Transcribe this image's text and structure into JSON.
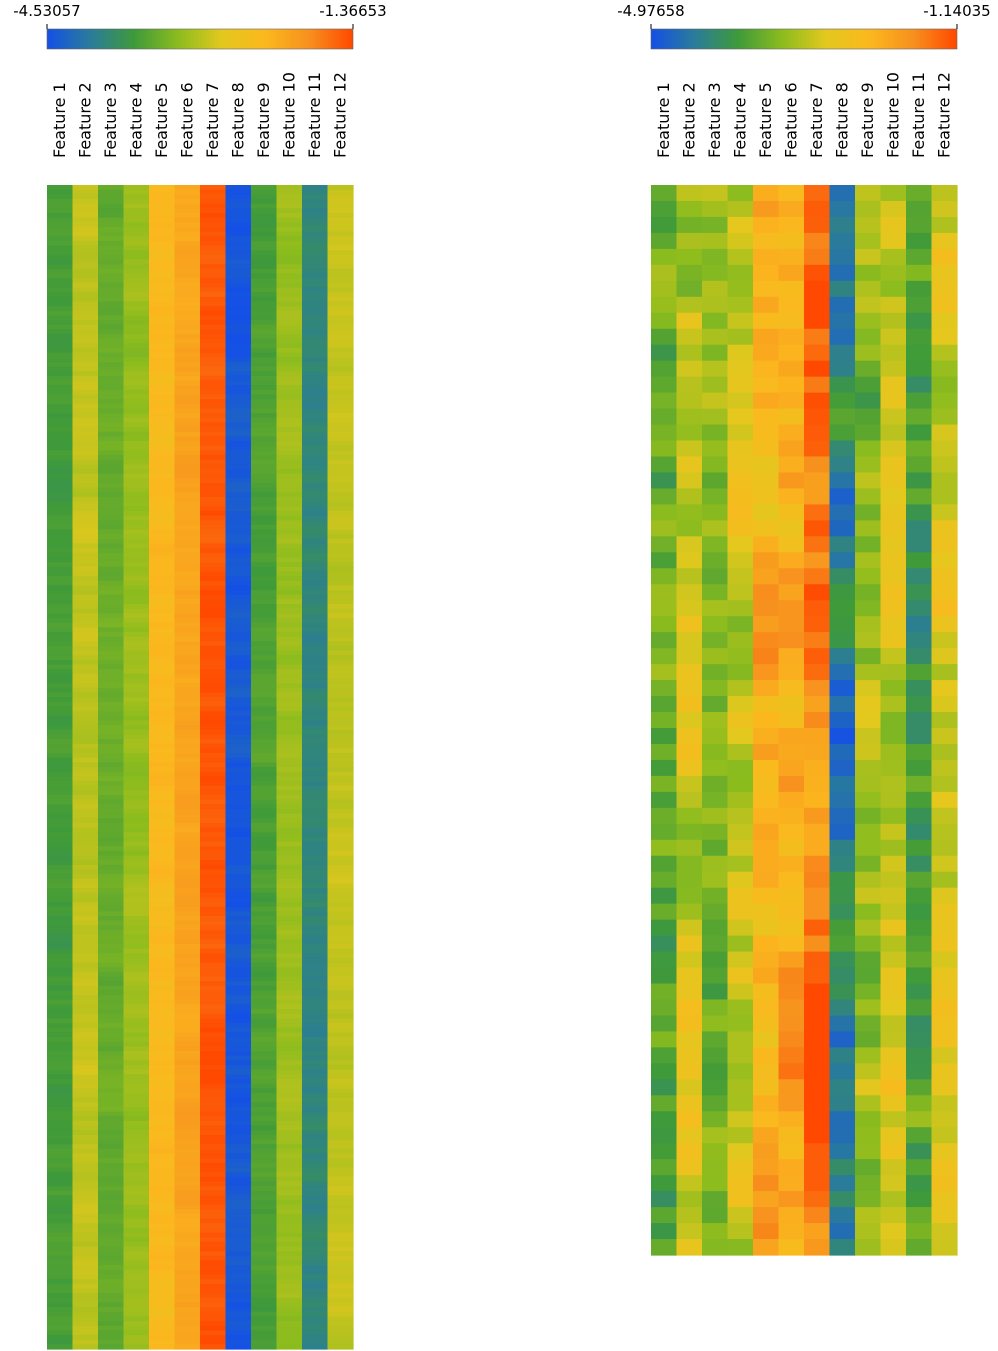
{
  "chart_data": [
    {
      "type": "heatmap",
      "title": "",
      "colorbar": {
        "min": -4.53057,
        "max": -1.36653,
        "min_label": "-4.53057",
        "max_label": "-1.36653"
      },
      "colormap": [
        "#1450e6",
        "#2a7c9a",
        "#3f9a3a",
        "#8cbc1e",
        "#e3c81e",
        "#fbb81e",
        "#f7901e",
        "#ff4800"
      ],
      "features": [
        "Feature 1",
        "Feature 2",
        "Feature 3",
        "Feature 4",
        "Feature 5",
        "Feature 6",
        "Feature 7",
        "Feature 8",
        "Feature 9",
        "Feature 10",
        "Feature 11",
        "Feature 12"
      ],
      "row_count": 250,
      "row_variation": 0.06,
      "column_means": [
        -3.6,
        -2.9,
        -3.4,
        -3.1,
        -2.3,
        -2.05,
        -1.45,
        -4.45,
        -3.55,
        -3.1,
        -3.95,
        -2.9
      ]
    },
    {
      "type": "heatmap",
      "title": "",
      "colorbar": {
        "min": -4.97658,
        "max": -1.14035,
        "min_label": "-4.97658",
        "max_label": "-1.14035"
      },
      "colormap": [
        "#1450e6",
        "#2a7c9a",
        "#3f9a3a",
        "#8cbc1e",
        "#e3c81e",
        "#fbb81e",
        "#f7901e",
        "#ff4800"
      ],
      "features": [
        "Feature 1",
        "Feature 2",
        "Feature 3",
        "Feature 4",
        "Feature 5",
        "Feature 6",
        "Feature 7",
        "Feature 8",
        "Feature 9",
        "Feature 10",
        "Feature 11",
        "Feature 12"
      ],
      "row_count": 67,
      "row_variation": 0.35,
      "column_means": [
        -3.6,
        -2.9,
        -3.3,
        -3.0,
        -2.2,
        -2.05,
        -1.55,
        -4.35,
        -3.3,
        -3.0,
        -3.8,
        -2.8
      ]
    }
  ]
}
